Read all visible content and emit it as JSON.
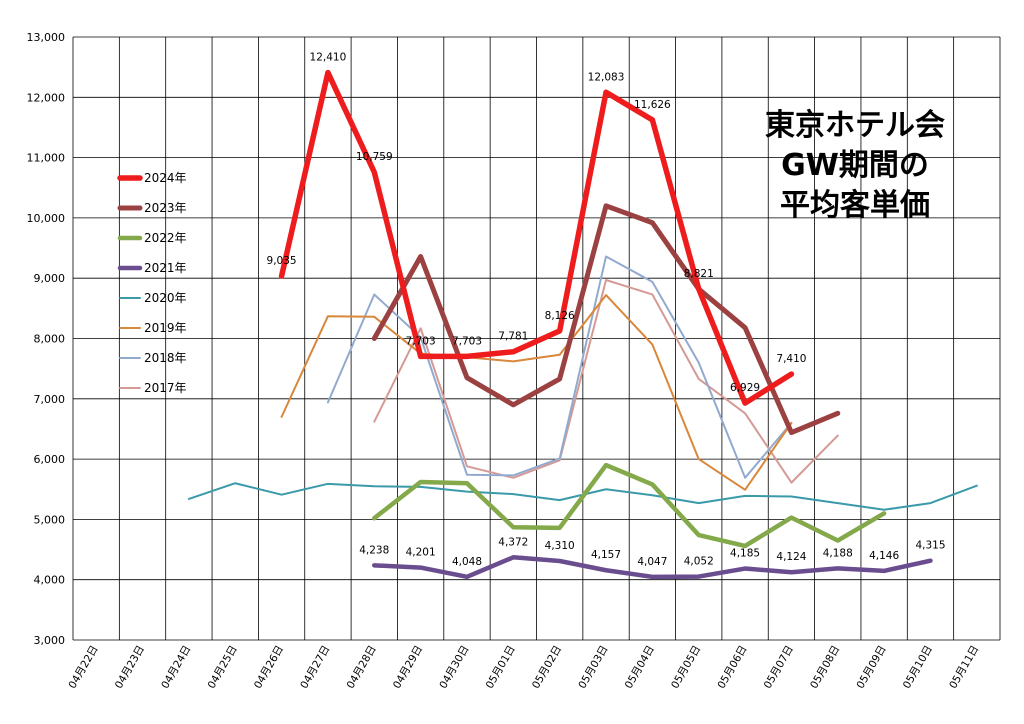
{
  "chart_data": {
    "type": "line",
    "title_lines": [
      "東京ホテル会",
      "GW期間の",
      "平均客単価"
    ],
    "xlabel": "",
    "ylabel": "",
    "ylim": [
      3000,
      13000
    ],
    "yticks": [
      "3,000",
      "4,000",
      "5,000",
      "6,000",
      "7,000",
      "8,000",
      "9,000",
      "10,000",
      "11,000",
      "12,000",
      "13,000"
    ],
    "categories": [
      "04月22日",
      "04月23日",
      "04月24日",
      "04月25日",
      "04月26日",
      "04月27日",
      "04月28日",
      "04月29日",
      "04月30日",
      "05月01日",
      "05月02日",
      "05月03日",
      "05月04日",
      "05月05日",
      "05月06日",
      "05月07日",
      "05月08日",
      "05月09日",
      "05月10日",
      "05月11日"
    ],
    "grid": "vertical and horizontal",
    "legend_position": "left",
    "series": [
      {
        "name": "2024年",
        "color": "#ee1c1c",
        "width": 5.5,
        "label_values": true,
        "values": [
          null,
          null,
          null,
          null,
          9035,
          12410,
          10759,
          7703,
          7703,
          7781,
          8126,
          12083,
          11626,
          8821,
          6929,
          7410,
          null,
          null,
          null,
          null
        ],
        "labels": [
          null,
          null,
          null,
          null,
          "9,035",
          "12,410",
          "10,759",
          "7,703",
          "7,703",
          "7,781",
          "8,126",
          "12,083",
          "11,626",
          "8,821",
          "6,929",
          "7,410",
          null,
          null,
          null,
          null
        ]
      },
      {
        "name": "2023年",
        "color": "#9c4141",
        "width": 5,
        "values": [
          null,
          null,
          null,
          null,
          null,
          null,
          8000,
          9360,
          7350,
          6900,
          7330,
          10200,
          9920,
          8820,
          8180,
          6440,
          6760,
          null,
          null,
          null
        ]
      },
      {
        "name": "2022年",
        "color": "#83a94a",
        "width": 4.5,
        "values": [
          null,
          null,
          null,
          null,
          null,
          null,
          5020,
          5620,
          5600,
          4870,
          4860,
          5900,
          5580,
          4740,
          4560,
          5030,
          4650,
          5100,
          null,
          null
        ]
      },
      {
        "name": "2021年",
        "color": "#6a4d8e",
        "width": 4.5,
        "label_values": true,
        "values": [
          null,
          null,
          null,
          null,
          null,
          null,
          4238,
          4201,
          4048,
          4372,
          4310,
          4157,
          4047,
          4052,
          4185,
          4124,
          4188,
          4146,
          4315,
          null
        ],
        "labels": [
          null,
          null,
          null,
          null,
          null,
          null,
          "4,238",
          "4,201",
          "4,048",
          "4,372",
          "4,310",
          "4,157",
          "4,047",
          "4,052",
          "4,185",
          "4,124",
          "4,188",
          "4,146",
          "4,315",
          null
        ]
      },
      {
        "name": "2020年",
        "color": "#3a9aaa",
        "width": 2,
        "values": [
          null,
          null,
          5340,
          5600,
          5410,
          5590,
          5550,
          5540,
          5460,
          5420,
          5320,
          5500,
          5400,
          5270,
          5390,
          5380,
          5270,
          5160,
          5270,
          5560
        ]
      },
      {
        "name": "2019年",
        "color": "#d9873a",
        "width": 2,
        "values": [
          null,
          null,
          null,
          null,
          6700,
          8370,
          8360,
          7750,
          7690,
          7620,
          7730,
          8720,
          7900,
          6000,
          5490,
          6600,
          null,
          null,
          null,
          null
        ]
      },
      {
        "name": "2018年",
        "color": "#92aacf",
        "width": 2,
        "values": [
          null,
          null,
          null,
          null,
          null,
          6940,
          8730,
          8020,
          5740,
          5730,
          6010,
          9360,
          8940,
          7600,
          5690,
          6600,
          null,
          null,
          null,
          null
        ]
      },
      {
        "name": "2017年",
        "color": "#d49a95",
        "width": 2,
        "values": [
          null,
          null,
          null,
          null,
          null,
          null,
          6620,
          8170,
          5880,
          5690,
          5980,
          8970,
          8730,
          7330,
          6760,
          5610,
          6390,
          null,
          null,
          null
        ]
      }
    ]
  }
}
